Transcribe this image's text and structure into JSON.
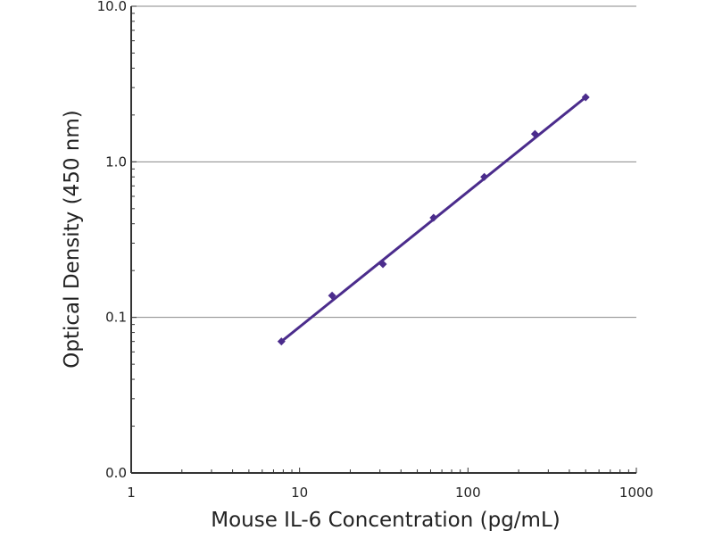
{
  "chart_data": {
    "type": "line",
    "title": "",
    "xlabel": "Mouse IL-6 Concentration (pg/mL)",
    "ylabel": "Optical Density (450 nm)",
    "x_scale": "log",
    "y_scale": "log",
    "xlim": [
      1,
      1000
    ],
    "ylim": [
      0.01,
      10
    ],
    "x_ticks": [
      {
        "value": 1,
        "label": "1"
      },
      {
        "value": 10,
        "label": "10"
      },
      {
        "value": 100,
        "label": "100"
      },
      {
        "value": 1000,
        "label": "1000"
      }
    ],
    "y_ticks": [
      {
        "value": 0.01,
        "label": "0.0"
      },
      {
        "value": 0.1,
        "label": "0.1"
      },
      {
        "value": 1,
        "label": "1.0"
      },
      {
        "value": 10,
        "label": "10.0"
      }
    ],
    "grid": "horizontal major gridlines",
    "series": [
      {
        "color": "#4b2c8c",
        "marker": "diamond",
        "x": [
          7.8,
          15.6,
          31.25,
          62.5,
          125,
          250,
          500
        ],
        "y": [
          0.07,
          0.138,
          0.22,
          0.437,
          0.8,
          1.51,
          2.6
        ]
      }
    ],
    "fit_line": {
      "color": "#4b2c8c",
      "x": [
        7.8,
        500
      ],
      "y": [
        0.07,
        2.6
      ]
    }
  }
}
